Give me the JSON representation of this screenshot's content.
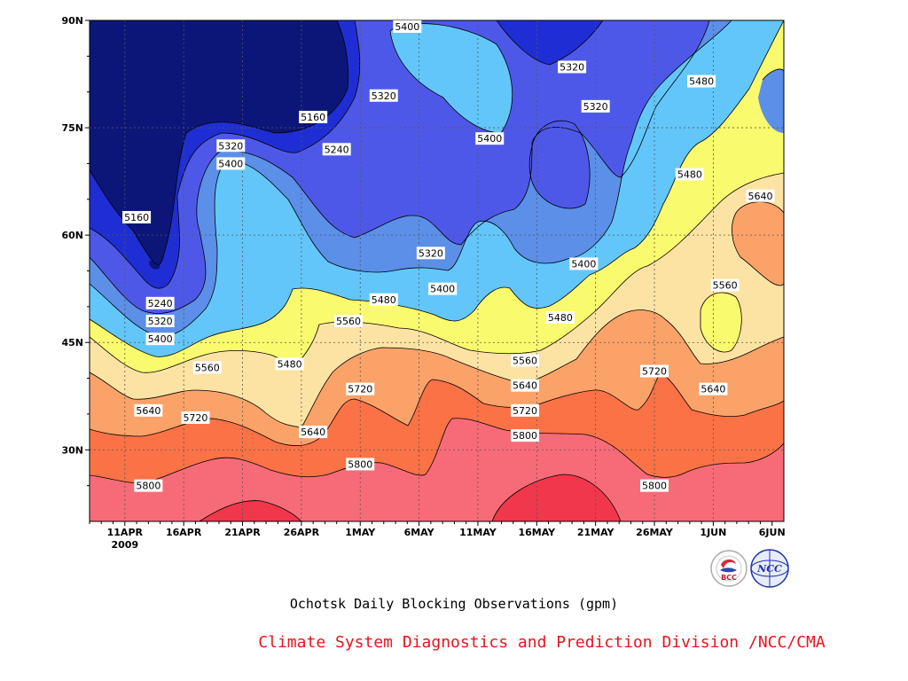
{
  "chart_data": {
    "type": "heatmap",
    "title": "Ochotsk Daily Blocking Observations (gpm)",
    "subtitle": "Climate System Diagnostics and Prediction Division /NCC/CMA",
    "x_ticks": [
      "11APR",
      "16APR",
      "21APR",
      "26APR",
      "1MAY",
      "6MAY",
      "11MAY",
      "16MAY",
      "21MAY",
      "26MAY",
      "1JUN",
      "6JUN"
    ],
    "x_year": "2009",
    "y_ticks": [
      "30N",
      "45N",
      "60N",
      "75N",
      "90N"
    ],
    "y_values": [
      30,
      45,
      60,
      75,
      90
    ],
    "xlim": [
      "2009-04-08",
      "2009-06-06"
    ],
    "ylim": [
      20,
      90
    ],
    "grid": true,
    "contour_levels": [
      5160,
      5240,
      5320,
      5400,
      5480,
      5560,
      5640,
      5720,
      5800
    ],
    "fill_colors": [
      "#0c1679",
      "#1f2ed4",
      "#4e58e8",
      "#5b8fe8",
      "#63c6fa",
      "#fafa6e",
      "#fce3a3",
      "#fba269",
      "#fb7246",
      "#f76b78",
      "#f0374c"
    ],
    "contour_labels": [
      {
        "text": "5400",
        "x": "2009-05-05",
        "y": 90
      },
      {
        "text": "5320",
        "x": "2009-05-19",
        "y": 83.5
      },
      {
        "text": "5480",
        "x": "2009-05-30",
        "y": 81.5
      },
      {
        "text": "5320",
        "x": "2009-05-03",
        "y": 79.5
      },
      {
        "text": "5160",
        "x": "2009-04-27",
        "y": 76.5
      },
      {
        "text": "5320",
        "x": "2009-05-21",
        "y": 78
      },
      {
        "text": "5400",
        "x": "2009-05-12",
        "y": 73.5
      },
      {
        "text": "5320",
        "x": "2009-04-20",
        "y": 72.5
      },
      {
        "text": "5240",
        "x": "2009-04-29",
        "y": 72
      },
      {
        "text": "5400",
        "x": "2009-04-20",
        "y": 70
      },
      {
        "text": "5480",
        "x": "2009-05-29",
        "y": 68.5
      },
      {
        "text": "5640",
        "x": "2009-06-04",
        "y": 65.5
      },
      {
        "text": "5160",
        "x": "2009-04-12",
        "y": 62.5
      },
      {
        "text": "5320",
        "x": "2009-05-07",
        "y": 57.5
      },
      {
        "text": "5400",
        "x": "2009-05-20",
        "y": 56
      },
      {
        "text": "5560",
        "x": "2009-06-01",
        "y": 53
      },
      {
        "text": "5400",
        "x": "2009-05-08",
        "y": 52.5
      },
      {
        "text": "5480",
        "x": "2009-05-03",
        "y": 51
      },
      {
        "text": "5240",
        "x": "2009-04-14",
        "y": 50.5
      },
      {
        "text": "5560",
        "x": "2009-04-30",
        "y": 48
      },
      {
        "text": "5480",
        "x": "2009-05-18",
        "y": 48.5
      },
      {
        "text": "5320",
        "x": "2009-04-14",
        "y": 48
      },
      {
        "text": "5400",
        "x": "2009-04-14",
        "y": 45.5
      },
      {
        "text": "5560",
        "x": "2009-04-18",
        "y": 41.5
      },
      {
        "text": "5480",
        "x": "2009-04-25",
        "y": 42
      },
      {
        "text": "5560",
        "x": "2009-05-15",
        "y": 42.5
      },
      {
        "text": "5720",
        "x": "2009-05-26",
        "y": 41
      },
      {
        "text": "5640",
        "x": "2009-05-15",
        "y": 39
      },
      {
        "text": "5720",
        "x": "2009-05-01",
        "y": 38.5
      },
      {
        "text": "5640",
        "x": "2009-05-31",
        "y": 38.5
      },
      {
        "text": "5640",
        "x": "2009-04-13",
        "y": 35.5
      },
      {
        "text": "5720",
        "x": "2009-04-17",
        "y": 34.5
      },
      {
        "text": "5720",
        "x": "2009-05-15",
        "y": 35.5
      },
      {
        "text": "5640",
        "x": "2009-04-27",
        "y": 32.5
      },
      {
        "text": "5800",
        "x": "2009-05-15",
        "y": 32
      },
      {
        "text": "5800",
        "x": "2009-05-01",
        "y": 28
      },
      {
        "text": "5800",
        "x": "2009-04-13",
        "y": 25
      },
      {
        "text": "5800",
        "x": "2009-05-26",
        "y": 25
      }
    ]
  },
  "logos": [
    {
      "text": "BCC",
      "color": "#c0182b"
    },
    {
      "text": "NCC",
      "color": "#2233aa"
    }
  ]
}
